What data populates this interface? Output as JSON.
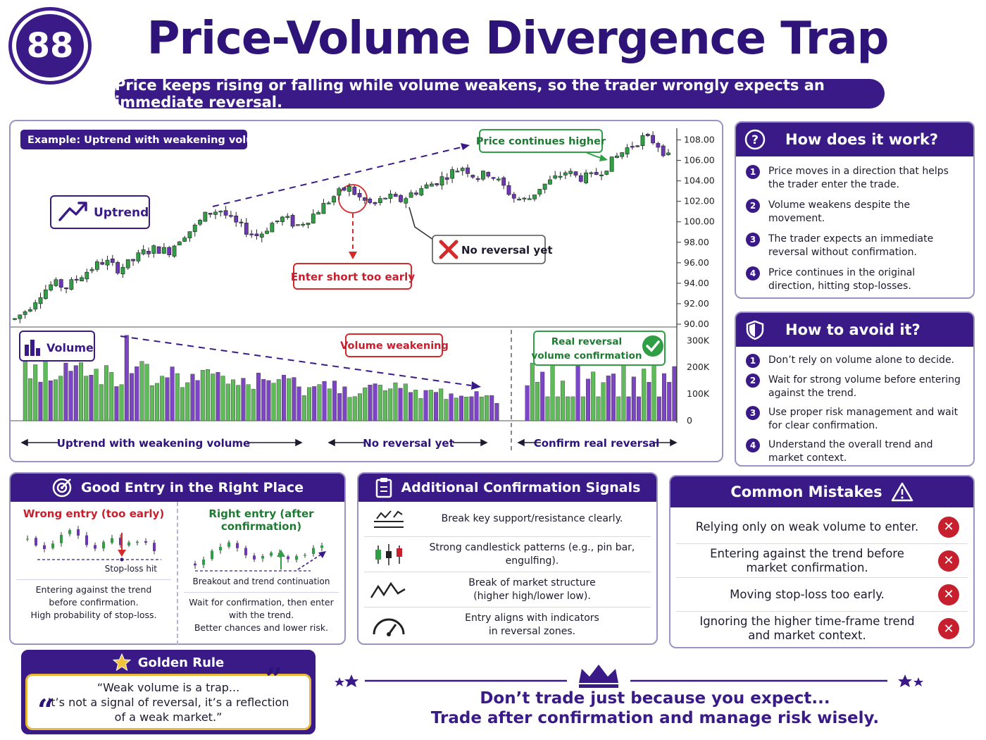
{
  "badge": "88",
  "title": "Price-Volume Divergence Trap",
  "subtitle": "Price keeps rising or falling while volume weakens, so the trader wrongly expects an immediate reversal.",
  "chart": {
    "example_label": "Example: Uptrend with weakening volume",
    "uptrend_label": "Uptrend",
    "price_continues": "Price continues higher",
    "no_reversal": "No reversal yet",
    "enter_short": "Enter short too early",
    "volume_label": "Volume",
    "volume_weakening": "Volume weakening",
    "real_reversal_1": "Real reversal",
    "real_reversal_2": "volume confirmation",
    "section_1": "Uptrend with weakening volume",
    "section_2": "No reversal yet",
    "section_3": "Confirm real reversal"
  },
  "chart_data": {
    "type": "candlestick",
    "price_axis_ticks": [
      "108.00",
      "106.00",
      "104.00",
      "102.00",
      "100.00",
      "98.00",
      "96.00",
      "94.00",
      "92.00",
      "90.00"
    ],
    "volume_axis_ticks": [
      "300K",
      "200K",
      "100K",
      "0"
    ],
    "price_ylim": [
      90,
      109
    ],
    "volume_ylim": [
      0,
      330000
    ],
    "price_path": [
      90.5,
      91.5,
      93,
      94,
      93.6,
      94.6,
      95.5,
      96.2,
      95.4,
      96,
      97,
      97.4,
      97.1,
      98.6,
      99.4,
      100.8,
      101.2,
      100,
      99.2,
      98.6,
      99.8,
      100.4,
      99.6,
      100.4,
      101.5,
      102.6,
      103.4,
      102.2,
      101.6,
      102.5,
      102,
      102.8,
      103.4,
      104,
      104.8,
      105.4,
      104.3,
      104.8,
      103.6,
      102.3,
      102.1,
      103.4,
      104.1,
      104.9,
      104.3,
      104.4,
      105.2,
      106.4,
      107.4,
      108.2,
      107.8,
      106.3
    ],
    "colors": {
      "up": "#2f9e44",
      "down": "#6d36b5",
      "up_volume": "#5fba5a",
      "down_volume": "#7b45c4",
      "accent": "#3a1a86",
      "warning": "#d42a2a"
    }
  },
  "how": {
    "title": "How does it work?",
    "items": [
      "Price moves in a direction that helps the trader enter the trade.",
      "Volume weakens despite the movement.",
      "The trader expects an immediate reversal without confirmation.",
      "Price continues in the original direction, hitting stop-losses."
    ]
  },
  "avoid": {
    "title": "How to avoid it?",
    "items": [
      "Don’t rely on volume alone to decide.",
      "Wait for strong volume before entering against the trend.",
      "Use proper risk management and wait for clear confirmation.",
      "Understand the overall trend and market context."
    ]
  },
  "good_entry": {
    "title": "Good Entry in the Right Place",
    "wrong_title": "Wrong entry (too early)",
    "wrong_caption": "Stop-loss hit",
    "wrong_desc_1": "Entering against the trend",
    "wrong_desc_2": "before confirmation.",
    "wrong_desc_3": "High probability of stop-loss.",
    "right_title": "Right entry (after confirmation)",
    "right_caption": "Breakout and trend continuation",
    "right_desc_1": "Wait for confirmation, then enter",
    "right_desc_2": "with the trend.",
    "right_desc_3": "Better chances and lower risk."
  },
  "signals": {
    "title": "Additional Confirmation Signals",
    "items": [
      [
        "Break key support/resistance clearly.",
        ""
      ],
      [
        "Strong candlestick patterns (e.g., pin bar,",
        "engulfing)."
      ],
      [
        "Break of market structure",
        "(higher high/lower low)."
      ],
      [
        "Entry aligns with indicators",
        "in reversal zones."
      ]
    ]
  },
  "mistakes": {
    "title": "Common Mistakes",
    "items": [
      [
        "Relying only on weak volume to enter.",
        ""
      ],
      [
        "Entering against the trend before",
        "market confirmation."
      ],
      [
        "Moving stop-loss too early.",
        ""
      ],
      [
        "Ignoring the higher time-frame trend",
        "and market context."
      ]
    ]
  },
  "golden": {
    "title": "Golden Rule",
    "line1": "“Weak volume is a trap...",
    "line2": "It’s not a signal of reversal, it’s a reflection",
    "line3": "of a weak market.”"
  },
  "footer": {
    "line1": "Don’t trade just because you expect...",
    "line2": "Trade after confirmation and manage risk wisely."
  }
}
